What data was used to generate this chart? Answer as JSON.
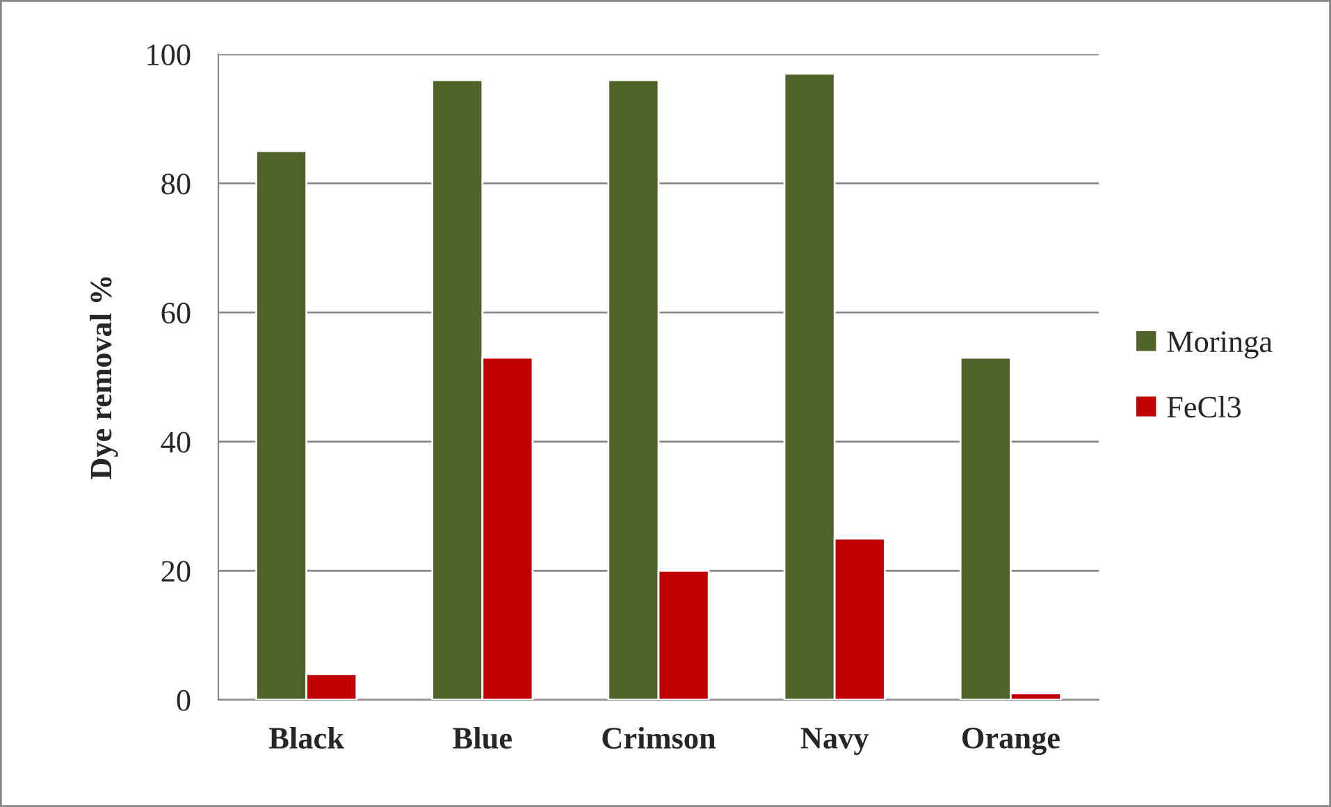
{
  "chart_data": {
    "type": "bar",
    "ylabel": "Dye removal %",
    "categories": [
      "Black",
      "Blue",
      "Crimson",
      "Navy",
      "Orange"
    ],
    "series": [
      {
        "name": "Moringa",
        "color": "#4f6228",
        "values": [
          85,
          96,
          96,
          97,
          53
        ]
      },
      {
        "name": "FeCl3",
        "color": "#c00000",
        "values": [
          4,
          53,
          20,
          25,
          1
        ]
      }
    ],
    "ylim": [
      0,
      100
    ],
    "yticks": [
      0,
      20,
      40,
      60,
      80,
      100
    ],
    "grid": "y",
    "legend": "right"
  }
}
